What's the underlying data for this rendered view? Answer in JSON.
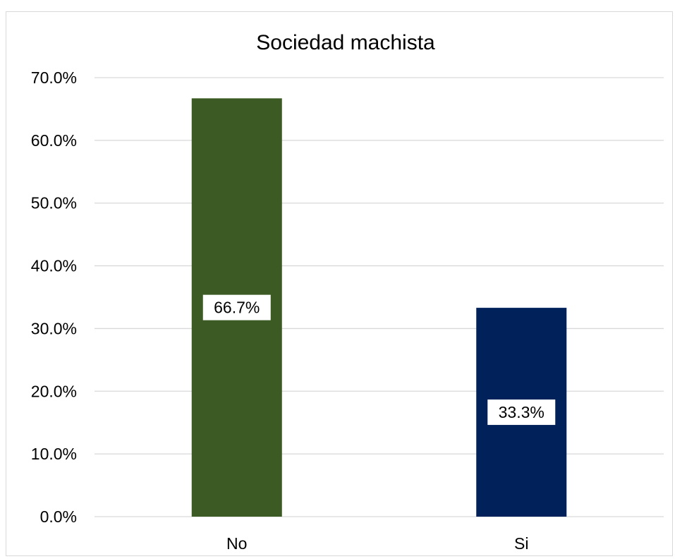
{
  "chart_data": {
    "type": "bar",
    "title": "Sociedad machista",
    "categories": [
      "No",
      "Si"
    ],
    "values": [
      66.7,
      33.3
    ],
    "data_labels": [
      "66.7%",
      "33.3%"
    ],
    "colors": [
      "#3b5a24",
      "#00215a"
    ],
    "xlabel": "",
    "ylabel": "",
    "ylim": [
      0,
      70
    ],
    "yticks": [
      0,
      10,
      20,
      30,
      40,
      50,
      60,
      70
    ],
    "ytick_labels": [
      "0.0%",
      "10.0%",
      "20.0%",
      "30.0%",
      "40.0%",
      "50.0%",
      "60.0%",
      "70.0%"
    ],
    "grid": true,
    "legend": "none"
  }
}
